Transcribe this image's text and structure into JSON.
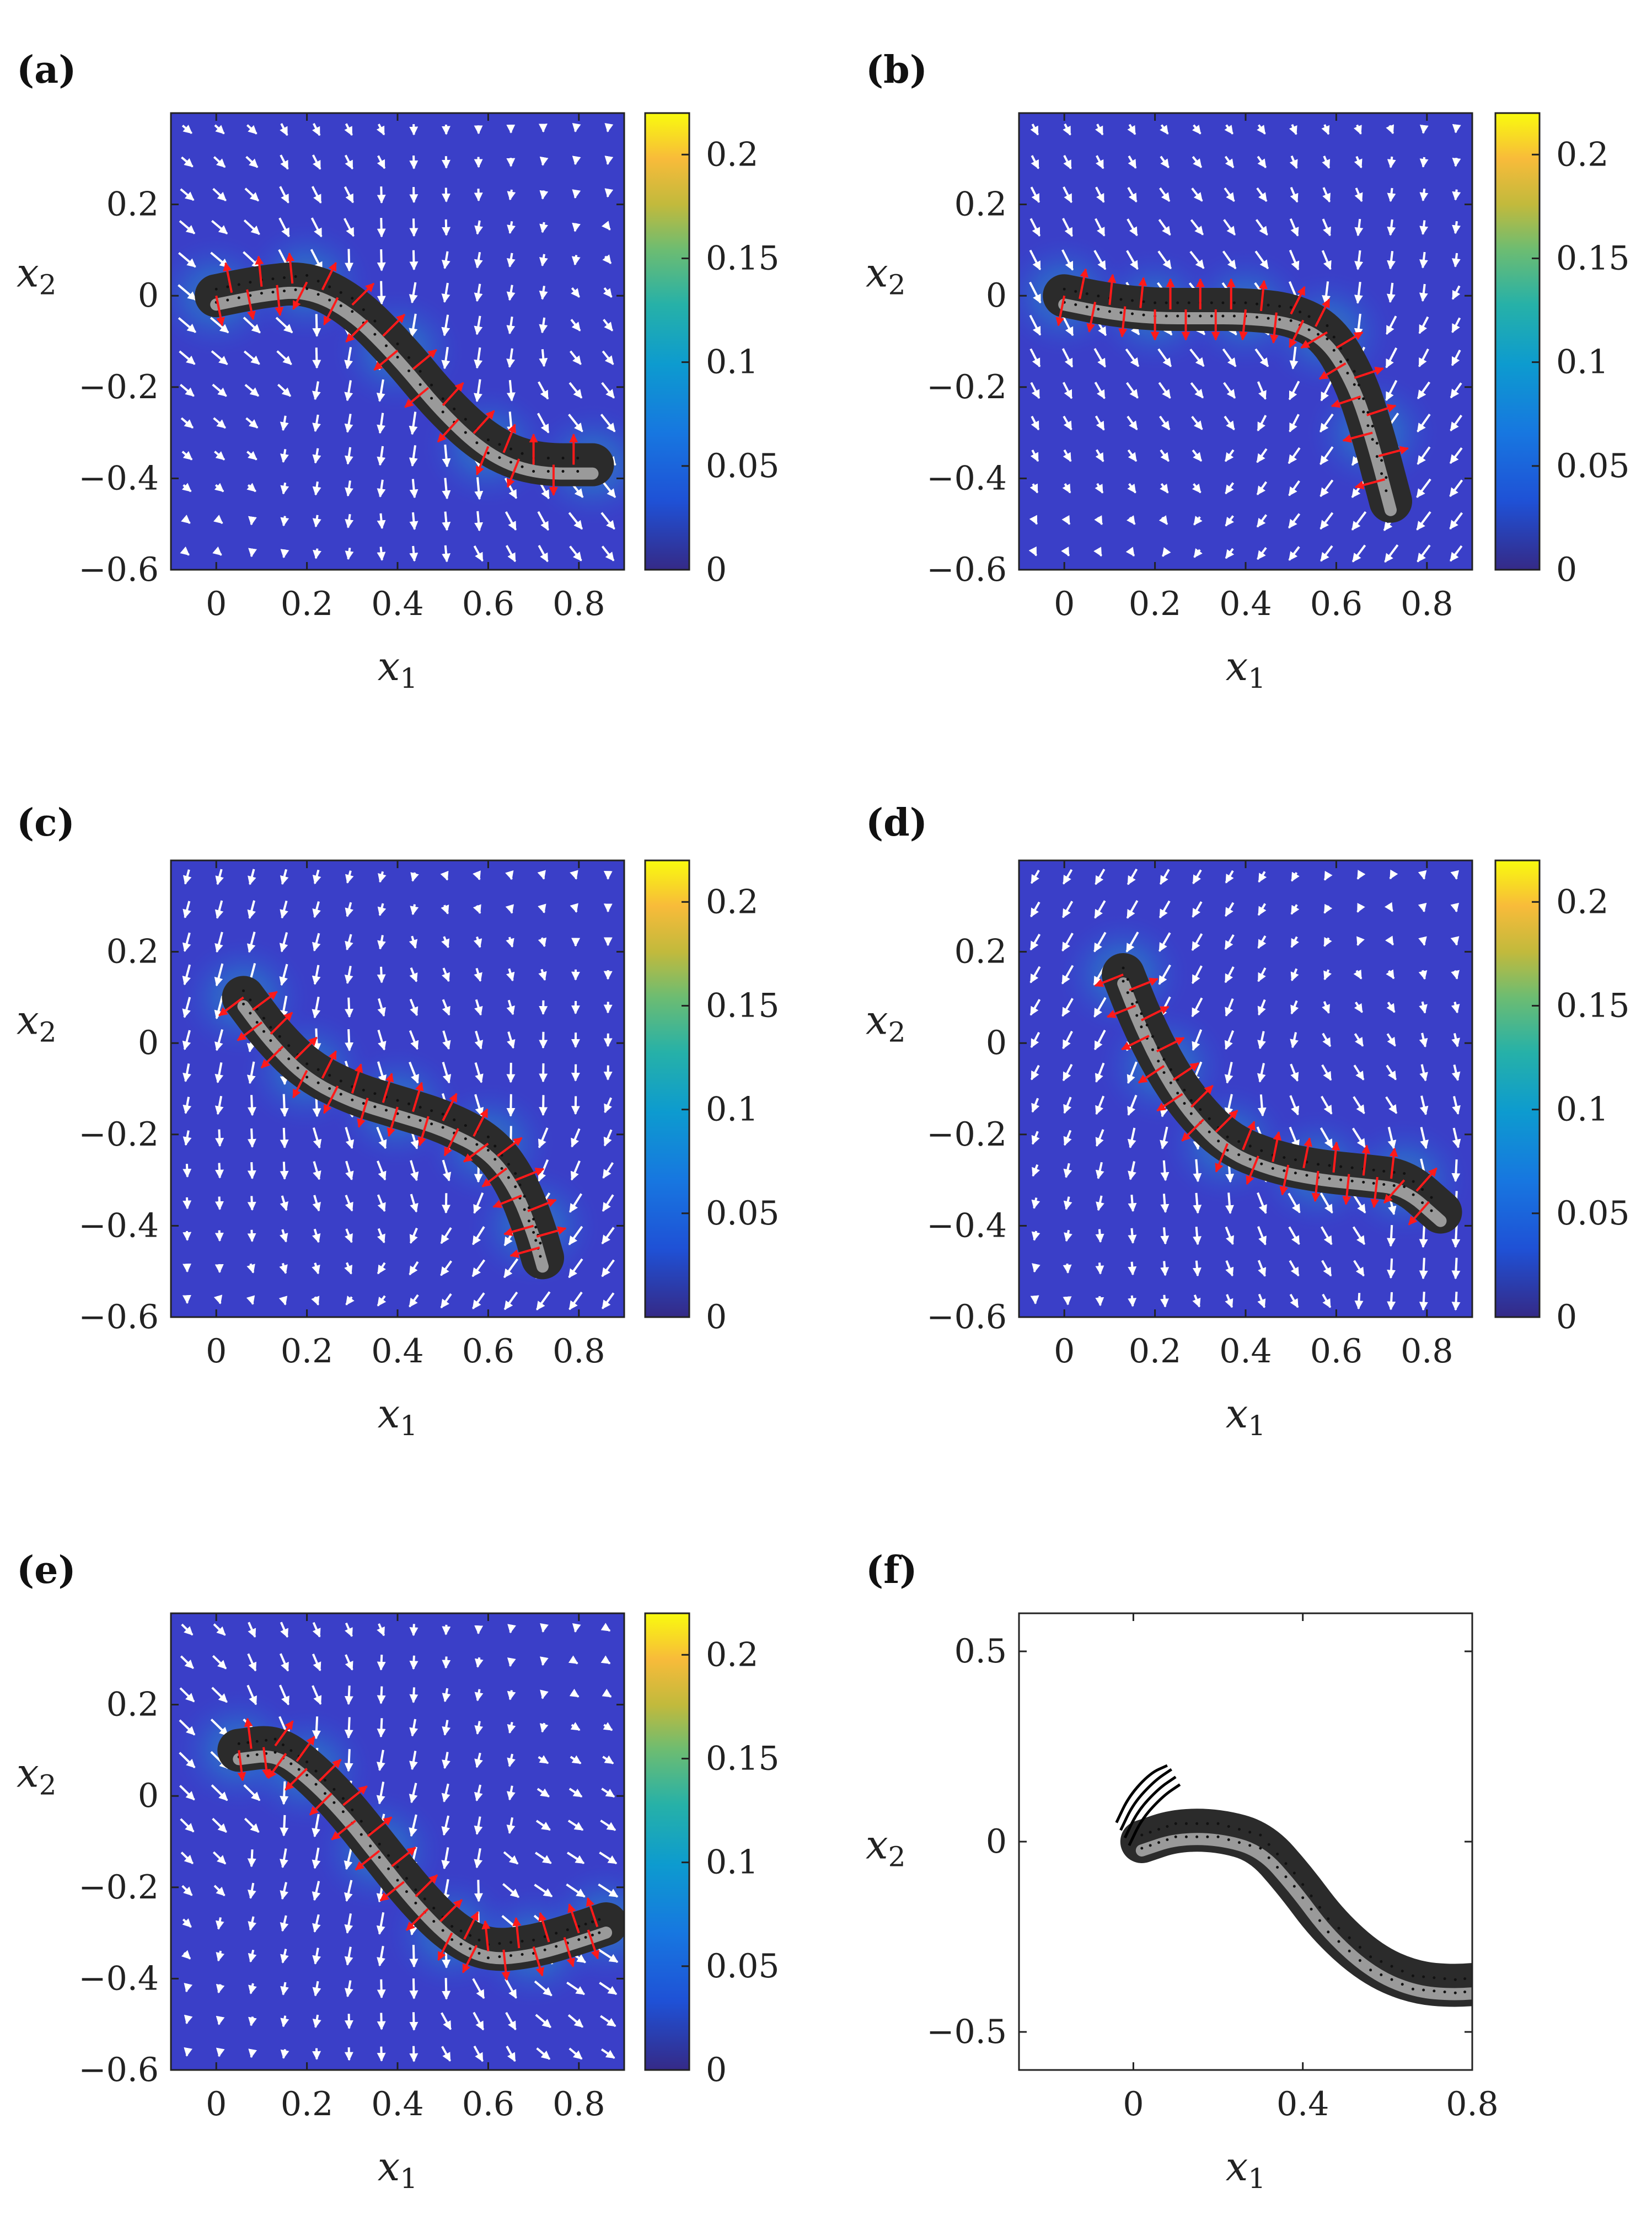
{
  "chart_data": [
    {
      "panel": "(a)",
      "type": "heatmap",
      "xlabel": "x",
      "xlabel_sub": "1",
      "ylabel": "x",
      "ylabel_sub": "2",
      "xlim": [
        -0.1,
        0.9
      ],
      "ylim": [
        -0.6,
        0.4
      ],
      "xticks": [
        0,
        0.2,
        0.4,
        0.6,
        0.8
      ],
      "xticklabels": [
        "0",
        "0.2",
        "0.4",
        "0.6",
        "0.8"
      ],
      "yticks": [
        0.2,
        0,
        -0.2,
        -0.4,
        -0.6
      ],
      "yticklabels": [
        "0.2",
        "0",
        "−0.2",
        "−0.4",
        "−0.6"
      ],
      "colorbar": {
        "range": [
          0,
          0.22
        ],
        "ticks": [
          0,
          0.05,
          0.1,
          0.15,
          0.2
        ],
        "ticklabels": [
          "0",
          "0.05",
          "0.1",
          "0.15",
          "0.2"
        ]
      },
      "body_centerline": [
        [
          0.0,
          0.0
        ],
        [
          0.1,
          0.02
        ],
        [
          0.2,
          0.03
        ],
        [
          0.3,
          -0.02
        ],
        [
          0.4,
          -0.12
        ],
        [
          0.5,
          -0.24
        ],
        [
          0.6,
          -0.33
        ],
        [
          0.7,
          -0.37
        ],
        [
          0.83,
          -0.37
        ]
      ]
    },
    {
      "panel": "(b)",
      "type": "heatmap",
      "xlabel": "x",
      "xlabel_sub": "1",
      "ylabel": "x",
      "ylabel_sub": "2",
      "xlim": [
        -0.1,
        0.9
      ],
      "ylim": [
        -0.6,
        0.4
      ],
      "xticks": [
        0,
        0.2,
        0.4,
        0.6,
        0.8
      ],
      "xticklabels": [
        "0",
        "0.2",
        "0.4",
        "0.6",
        "0.8"
      ],
      "yticks": [
        0.2,
        0,
        -0.2,
        -0.4,
        -0.6
      ],
      "yticklabels": [
        "0.2",
        "0",
        "−0.2",
        "−0.4",
        "−0.6"
      ],
      "colorbar": {
        "range": [
          0,
          0.22
        ],
        "ticks": [
          0,
          0.05,
          0.1,
          0.15,
          0.2
        ],
        "ticklabels": [
          "0",
          "0.05",
          "0.1",
          "0.15",
          "0.2"
        ]
      },
      "body_centerline": [
        [
          0.0,
          0.0
        ],
        [
          0.1,
          -0.02
        ],
        [
          0.2,
          -0.03
        ],
        [
          0.3,
          -0.03
        ],
        [
          0.4,
          -0.03
        ],
        [
          0.5,
          -0.04
        ],
        [
          0.58,
          -0.08
        ],
        [
          0.64,
          -0.18
        ],
        [
          0.68,
          -0.3
        ],
        [
          0.72,
          -0.45
        ]
      ]
    },
    {
      "panel": "(c)",
      "type": "heatmap",
      "xlabel": "x",
      "xlabel_sub": "1",
      "ylabel": "x",
      "ylabel_sub": "2",
      "xlim": [
        -0.1,
        0.9
      ],
      "ylim": [
        -0.6,
        0.4
      ],
      "xticks": [
        0,
        0.2,
        0.4,
        0.6,
        0.8
      ],
      "xticklabels": [
        "0",
        "0.2",
        "0.4",
        "0.6",
        "0.8"
      ],
      "yticks": [
        0.2,
        0,
        -0.2,
        -0.4,
        -0.6
      ],
      "yticklabels": [
        "0.2",
        "0",
        "−0.2",
        "−0.4",
        "−0.6"
      ],
      "colorbar": {
        "range": [
          0,
          0.22
        ],
        "ticks": [
          0,
          0.05,
          0.1,
          0.15,
          0.2
        ],
        "ticklabels": [
          "0",
          "0.05",
          "0.1",
          "0.15",
          "0.2"
        ]
      },
      "body_centerline": [
        [
          0.06,
          0.1
        ],
        [
          0.12,
          0.02
        ],
        [
          0.2,
          -0.06
        ],
        [
          0.3,
          -0.11
        ],
        [
          0.4,
          -0.14
        ],
        [
          0.5,
          -0.17
        ],
        [
          0.6,
          -0.22
        ],
        [
          0.66,
          -0.3
        ],
        [
          0.7,
          -0.4
        ],
        [
          0.72,
          -0.47
        ]
      ]
    },
    {
      "panel": "(d)",
      "type": "heatmap",
      "xlabel": "x",
      "xlabel_sub": "1",
      "ylabel": "x",
      "ylabel_sub": "2",
      "xlim": [
        -0.1,
        0.9
      ],
      "ylim": [
        -0.6,
        0.4
      ],
      "xticks": [
        0,
        0.2,
        0.4,
        0.6,
        0.8
      ],
      "xticklabels": [
        "0",
        "0.2",
        "0.4",
        "0.6",
        "0.8"
      ],
      "yticks": [
        0.2,
        0,
        -0.2,
        -0.4,
        -0.6
      ],
      "yticklabels": [
        "0.2",
        "0",
        "−0.2",
        "−0.4",
        "−0.6"
      ],
      "colorbar": {
        "range": [
          0,
          0.22
        ],
        "ticks": [
          0,
          0.05,
          0.1,
          0.15,
          0.2
        ],
        "ticklabels": [
          "0",
          "0.05",
          "0.1",
          "0.15",
          "0.2"
        ]
      },
      "body_centerline": [
        [
          0.13,
          0.15
        ],
        [
          0.17,
          0.05
        ],
        [
          0.22,
          -0.05
        ],
        [
          0.28,
          -0.14
        ],
        [
          0.36,
          -0.22
        ],
        [
          0.46,
          -0.26
        ],
        [
          0.56,
          -0.28
        ],
        [
          0.66,
          -0.29
        ],
        [
          0.75,
          -0.3
        ],
        [
          0.83,
          -0.37
        ]
      ]
    },
    {
      "panel": "(e)",
      "type": "heatmap",
      "xlabel": "x",
      "xlabel_sub": "1",
      "ylabel": "x",
      "ylabel_sub": "2",
      "xlim": [
        -0.1,
        0.9
      ],
      "ylim": [
        -0.6,
        0.4
      ],
      "xticks": [
        0,
        0.2,
        0.4,
        0.6,
        0.8
      ],
      "xticklabels": [
        "0",
        "0.2",
        "0.4",
        "0.6",
        "0.8"
      ],
      "yticks": [
        0.2,
        0,
        -0.2,
        -0.4,
        -0.6
      ],
      "yticklabels": [
        "0.2",
        "0",
        "−0.2",
        "−0.4",
        "−0.6"
      ],
      "colorbar": {
        "range": [
          0,
          0.22
        ],
        "ticks": [
          0,
          0.05,
          0.1,
          0.15,
          0.2
        ],
        "ticklabels": [
          "0",
          "0.05",
          "0.1",
          "0.15",
          "0.2"
        ]
      },
      "body_centerline": [
        [
          0.05,
          0.1
        ],
        [
          0.13,
          0.11
        ],
        [
          0.2,
          0.06
        ],
        [
          0.28,
          -0.02
        ],
        [
          0.36,
          -0.12
        ],
        [
          0.44,
          -0.22
        ],
        [
          0.52,
          -0.3
        ],
        [
          0.6,
          -0.34
        ],
        [
          0.7,
          -0.33
        ],
        [
          0.8,
          -0.3
        ],
        [
          0.86,
          -0.28
        ]
      ]
    },
    {
      "panel": "(f)",
      "type": "line",
      "xlabel": "x",
      "xlabel_sub": "1",
      "ylabel": "x",
      "ylabel_sub": "2",
      "xlim": [
        -0.27,
        0.8
      ],
      "ylim": [
        -0.6,
        0.6
      ],
      "xticks": [
        0,
        0.4,
        0.8
      ],
      "xticklabels": [
        "0",
        "0.4",
        "0.8"
      ],
      "yticks": [
        0.5,
        0,
        -0.5
      ],
      "yticklabels": [
        "0.5",
        "0",
        "−0.5"
      ],
      "body_centerline": [
        [
          0.02,
          0.0
        ],
        [
          0.1,
          0.03
        ],
        [
          0.2,
          0.03
        ],
        [
          0.3,
          0.0
        ],
        [
          0.38,
          -0.1
        ],
        [
          0.46,
          -0.22
        ],
        [
          0.56,
          -0.32
        ],
        [
          0.66,
          -0.37
        ],
        [
          0.76,
          -0.38
        ],
        [
          0.85,
          -0.37
        ]
      ],
      "flagella": [
        [
          [
            -0.04,
            0.05
          ],
          [
            -0.01,
            0.12
          ],
          [
            0.04,
            0.18
          ],
          [
            0.08,
            0.2
          ]
        ],
        [
          [
            -0.03,
            0.03
          ],
          [
            0.0,
            0.1
          ],
          [
            0.05,
            0.16
          ],
          [
            0.09,
            0.19
          ]
        ],
        [
          [
            -0.02,
            0.01
          ],
          [
            0.01,
            0.08
          ],
          [
            0.06,
            0.14
          ],
          [
            0.1,
            0.17
          ]
        ],
        [
          [
            -0.01,
            -0.01
          ],
          [
            0.02,
            0.06
          ],
          [
            0.07,
            0.12
          ],
          [
            0.11,
            0.15
          ]
        ]
      ]
    }
  ]
}
